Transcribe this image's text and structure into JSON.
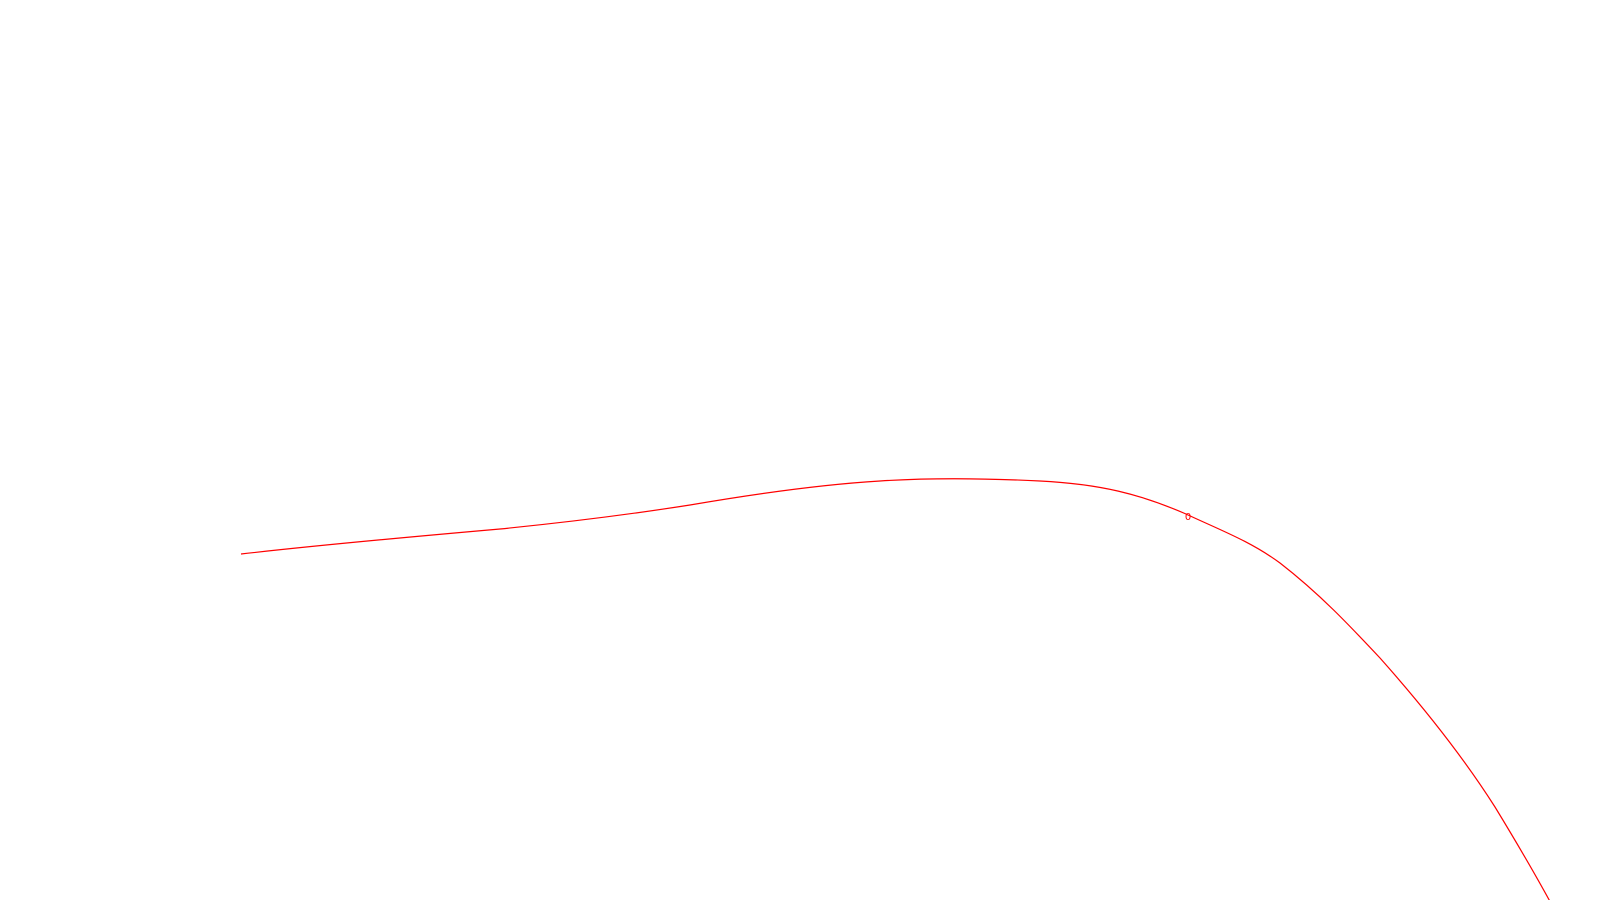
{
  "background_color": "#ffffff",
  "curve": {
    "color": "#ff0000",
    "label": "0"
  }
}
